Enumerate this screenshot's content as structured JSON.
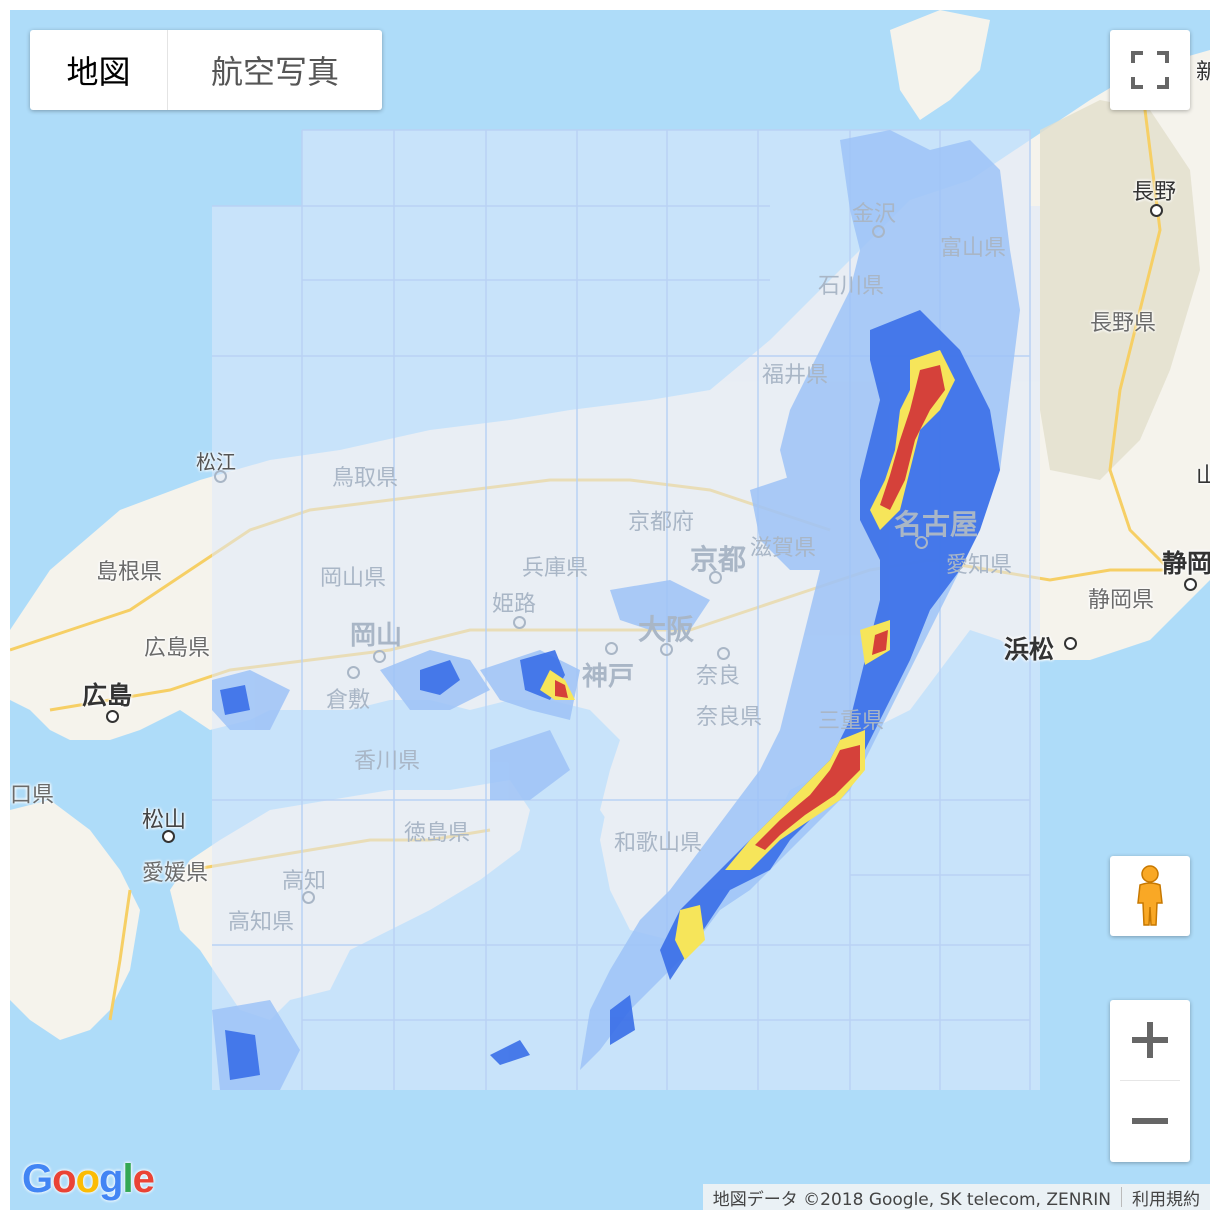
{
  "map_type_control": {
    "map_label": "地図",
    "satellite_label": "航空写真"
  },
  "prefectures": [
    {
      "name": "島根県",
      "faded": false
    },
    {
      "name": "広島県",
      "faded": false
    },
    {
      "name": "愛媛県",
      "faded": false
    },
    {
      "name": "高知県",
      "faded": true
    },
    {
      "name": "鳥取県",
      "faded": true
    },
    {
      "name": "岡山県",
      "faded": true
    },
    {
      "name": "兵庫県",
      "faded": true
    },
    {
      "name": "京都府",
      "faded": true
    },
    {
      "name": "滋賀県",
      "faded": true
    },
    {
      "name": "福井県",
      "faded": true
    },
    {
      "name": "石川県",
      "faded": true
    },
    {
      "name": "富山県",
      "faded": true
    },
    {
      "name": "香川県",
      "faded": true
    },
    {
      "name": "徳島県",
      "faded": true
    },
    {
      "name": "和歌山県",
      "faded": true
    },
    {
      "name": "奈良県",
      "faded": true
    },
    {
      "name": "三重県",
      "faded": true
    },
    {
      "name": "愛知県",
      "faded": true
    },
    {
      "name": "長野県",
      "faded": false
    },
    {
      "name": "静岡県",
      "faded": false
    },
    {
      "name": "山口県",
      "faded": false
    }
  ],
  "cities": [
    {
      "name": "広島",
      "faded": false
    },
    {
      "name": "松山",
      "faded": false
    },
    {
      "name": "松江",
      "faded": false
    },
    {
      "name": "高知",
      "faded": true
    },
    {
      "name": "岡山",
      "faded": true
    },
    {
      "name": "倉敷",
      "faded": true
    },
    {
      "name": "姫路",
      "faded": true
    },
    {
      "name": "神戸",
      "faded": true
    },
    {
      "name": "大阪",
      "faded": true
    },
    {
      "name": "京都",
      "faded": true
    },
    {
      "name": "奈良",
      "faded": true
    },
    {
      "name": "名古屋",
      "faded": true
    },
    {
      "name": "金沢",
      "faded": true
    },
    {
      "name": "長野",
      "faded": false
    },
    {
      "name": "静岡",
      "faded": false
    },
    {
      "name": "浜松",
      "faded": false
    },
    {
      "name": "新",
      "faded": false
    },
    {
      "name": "山",
      "faded": false
    }
  ],
  "attribution": {
    "data": "地図データ ©2018 Google, SK telecom, ZENRIN",
    "terms": "利用規約"
  },
  "logo": {
    "letters": [
      "G",
      "o",
      "o",
      "g",
      "l",
      "e"
    ]
  },
  "colors": {
    "water": "#aedcf9",
    "land": "#f5f3ec",
    "mountain": "#dfdcc8",
    "road_major": "#f6cf65",
    "radar_light": "#9ec3f7",
    "radar_medium": "#3a6fe8",
    "radar_heavy": "#f6e55a",
    "radar_severe": "#d5413a"
  },
  "icons": {
    "fullscreen": "fullscreen-icon",
    "pegman": "pegman-icon",
    "zoom_in": "plus-icon",
    "zoom_out": "minus-icon"
  }
}
